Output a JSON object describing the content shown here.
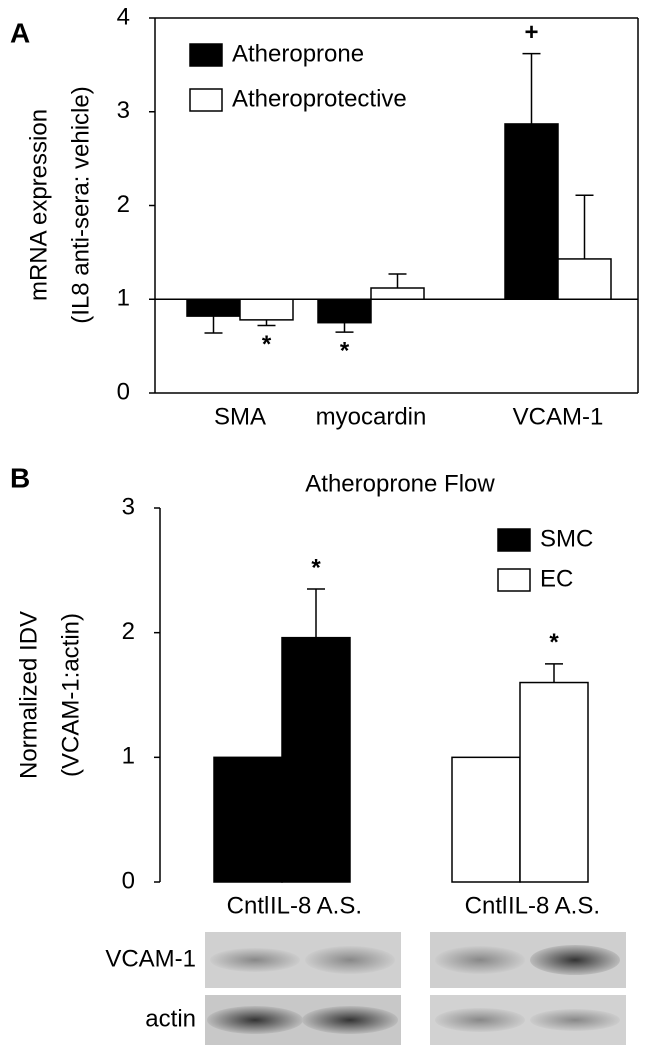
{
  "chart_data": [
    {
      "type": "bar",
      "panel_label": "A",
      "y_label": [
        "mRNA expression",
        "(IL8 anti-sera: vehicle)"
      ],
      "categories": [
        "SMA",
        "myocardin",
        "VCAM-1"
      ],
      "baseline": 1,
      "ylim": [
        0,
        4
      ],
      "yticks": [
        0,
        1,
        2,
        3,
        4
      ],
      "grid": false,
      "box": true,
      "series": [
        {
          "name": "Atheroprone",
          "color": "#000000",
          "values": [
            0.82,
            0.75,
            2.87
          ],
          "errors": [
            0.18,
            0.1,
            0.75
          ],
          "markers": [
            null,
            "*",
            "+"
          ]
        },
        {
          "name": "Atheroprotective",
          "color": "#ffffff",
          "values": [
            0.78,
            1.12,
            1.43
          ],
          "errors": [
            0.06,
            0.15,
            0.68
          ],
          "markers": [
            "*",
            null,
            null
          ]
        }
      ]
    },
    {
      "type": "bar",
      "panel_label": "B",
      "title": "Atheroprone Flow",
      "y_label": [
        "Normalized IDV",
        "(VCAM-1:actin)"
      ],
      "categories": [
        "Cntl",
        "IL-8 A.S.",
        "Cntl",
        "IL-8 A.S."
      ],
      "baseline": 0,
      "ylim": [
        0,
        3
      ],
      "yticks": [
        0,
        1,
        2,
        3
      ],
      "grid": false,
      "box": false,
      "series": [
        {
          "name": "SMC",
          "color": "#000000",
          "values": [
            1.0,
            1.96,
            null,
            null
          ],
          "errors": [
            null,
            0.39,
            null,
            null
          ],
          "markers": [
            null,
            "*",
            null,
            null
          ]
        },
        {
          "name": "EC",
          "color": "#ffffff",
          "values": [
            null,
            null,
            1.0,
            1.6
          ],
          "errors": [
            null,
            null,
            null,
            0.15
          ],
          "markers": [
            null,
            null,
            null,
            "*"
          ]
        }
      ]
    }
  ],
  "blot": {
    "labels": [
      "VCAM-1",
      "actin"
    ]
  }
}
